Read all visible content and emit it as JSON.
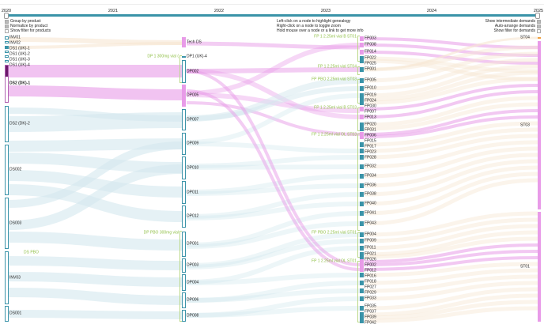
{
  "timeline": {
    "years": [
      "2020",
      "2021",
      "2022",
      "2023",
      "2024",
      "2025"
    ]
  },
  "options_left": [
    {
      "label": "Group by product",
      "checked": true
    },
    {
      "label": "Normalize by product",
      "checked": true
    },
    {
      "label": "Show filter for products",
      "checked": false
    }
  ],
  "help": [
    "Left-click on a node to highlight genealogy",
    "Right-click on a node to toggle zoom",
    "Hold mouse over a node or a link to get more info"
  ],
  "options_right": [
    {
      "label": "Show intermediate demands",
      "checked": true
    },
    {
      "label": "Auto-arrange demands",
      "checked": true
    },
    {
      "label": "Show filter for demands",
      "checked": false
    }
  ],
  "colors": {
    "accent": "#3a93a8",
    "pink": "#e89be8",
    "peach": "#f7e6d2",
    "lightblue": "#d3e8ee",
    "purple": "#6b1a6b",
    "group": "#8fbf45"
  },
  "columns": [
    {
      "nodes": [
        "INV01",
        "INV02",
        "DS1 (UK)-1",
        "DS1 (UK)-2",
        "DS1 (UK)-3",
        "DS1 (UK)-4",
        "DS2 (DK)-1",
        "DS2 (DK)-2",
        "DS002",
        "DS003",
        "INV03",
        "DS001"
      ],
      "groups": [
        "DS PBO"
      ]
    },
    {
      "nodes": [
        "Tech DS",
        "DP1 (UK)-4",
        "DP002",
        "DP005",
        "DP007",
        "DP009",
        "DP010",
        "DP011",
        "DP012",
        "DP001",
        "DP003",
        "DP004",
        "DP006",
        "DP008"
      ],
      "groups": [
        "DP 1 300mg vial (",
        "DP PBO 300mg vial"
      ]
    },
    {
      "nodes": [
        "FP003",
        "FP008",
        "FP014",
        "FP022",
        "FP025",
        "FP001",
        "FP005",
        "FP010",
        "FP019",
        "FP024",
        "FP030",
        "FP007",
        "FP013",
        "FP020",
        "FP031",
        "FP006",
        "FP015",
        "FP017",
        "FP023",
        "FP028",
        "FP032",
        "FP034",
        "FP036",
        "FP038",
        "FP040",
        "FP041",
        "FP043",
        "FP004",
        "FP009",
        "FP011",
        "FP021",
        "FP026",
        "FP002",
        "FP012",
        "FP016",
        "FP018",
        "FP027",
        "FP029",
        "FP033",
        "FP035",
        "FP037",
        "FP039",
        "FP042"
      ],
      "groups": [
        "FP 1 2.25ml vial B ST01",
        "FP 1 2.25ml vial ST04",
        "FP PBO 2.25ml vial ST03",
        "FP 1 2.25ml vial B ST03",
        "FP 1 2.25ml vial OL ST03",
        "FP PBO 2.25ml vial ST01",
        "FP 1 2.25ml vial OL ST01"
      ]
    },
    {
      "nodes": [
        "ST04",
        "ST03",
        "ST01"
      ],
      "groups": []
    }
  ]
}
